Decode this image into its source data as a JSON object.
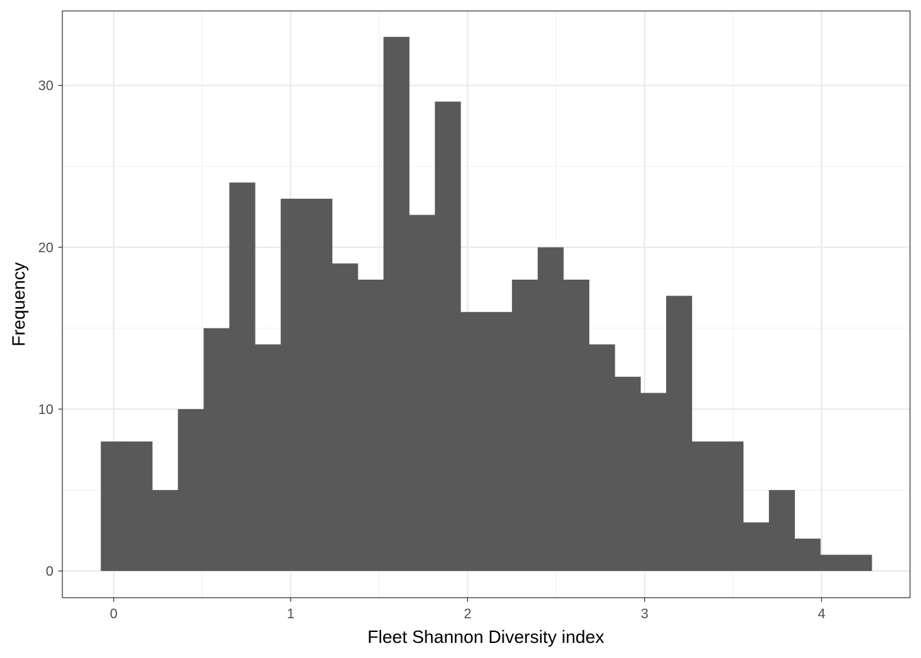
{
  "chart_data": {
    "type": "bar",
    "subtype": "histogram",
    "title": "",
    "xlabel": "Fleet Shannon Diversity index",
    "ylabel": "Frequency",
    "bin_width": 0.1452,
    "bins": [
      {
        "x_start": -0.0726,
        "x_end": 0.0726,
        "count": 8
      },
      {
        "x_start": 0.0726,
        "x_end": 0.2178,
        "count": 8
      },
      {
        "x_start": 0.2178,
        "x_end": 0.363,
        "count": 5
      },
      {
        "x_start": 0.363,
        "x_end": 0.5082,
        "count": 10
      },
      {
        "x_start": 0.5082,
        "x_end": 0.6534,
        "count": 15
      },
      {
        "x_start": 0.6534,
        "x_end": 0.7986,
        "count": 24
      },
      {
        "x_start": 0.7986,
        "x_end": 0.9438,
        "count": 14
      },
      {
        "x_start": 0.9438,
        "x_end": 1.089,
        "count": 23
      },
      {
        "x_start": 1.089,
        "x_end": 1.2342,
        "count": 23
      },
      {
        "x_start": 1.2342,
        "x_end": 1.3794,
        "count": 19
      },
      {
        "x_start": 1.3794,
        "x_end": 1.5246,
        "count": 18
      },
      {
        "x_start": 1.5246,
        "x_end": 1.6698,
        "count": 33
      },
      {
        "x_start": 1.6698,
        "x_end": 1.815,
        "count": 22
      },
      {
        "x_start": 1.815,
        "x_end": 1.9602,
        "count": 29
      },
      {
        "x_start": 1.9602,
        "x_end": 2.1054,
        "count": 16
      },
      {
        "x_start": 2.1054,
        "x_end": 2.2506,
        "count": 16
      },
      {
        "x_start": 2.2506,
        "x_end": 2.3958,
        "count": 18
      },
      {
        "x_start": 2.3958,
        "x_end": 2.541,
        "count": 20
      },
      {
        "x_start": 2.541,
        "x_end": 2.6862,
        "count": 18
      },
      {
        "x_start": 2.6862,
        "x_end": 2.8314,
        "count": 14
      },
      {
        "x_start": 2.8314,
        "x_end": 2.9766,
        "count": 12
      },
      {
        "x_start": 2.9766,
        "x_end": 3.1218,
        "count": 11
      },
      {
        "x_start": 3.1218,
        "x_end": 3.267,
        "count": 17
      },
      {
        "x_start": 3.267,
        "x_end": 3.4122,
        "count": 8
      },
      {
        "x_start": 3.4122,
        "x_end": 3.5574,
        "count": 8
      },
      {
        "x_start": 3.5574,
        "x_end": 3.7026,
        "count": 3
      },
      {
        "x_start": 3.7026,
        "x_end": 3.8478,
        "count": 5
      },
      {
        "x_start": 3.8478,
        "x_end": 3.993,
        "count": 2
      },
      {
        "x_start": 3.993,
        "x_end": 4.1382,
        "count": 1
      },
      {
        "x_start": 4.1382,
        "x_end": 4.2834,
        "count": 1
      }
    ],
    "xlim": [
      -0.29,
      4.5
    ],
    "ylim": [
      -1.65,
      34.6
    ],
    "x_ticks": [
      0,
      1,
      2,
      3,
      4
    ],
    "x_tick_labels": [
      "0",
      "1",
      "2",
      "3",
      "4"
    ],
    "y_ticks": [
      0,
      10,
      20,
      30
    ],
    "y_tick_labels": [
      "0",
      "10",
      "20",
      "30"
    ],
    "grid": true,
    "legend": "none",
    "colors": {
      "bar": "#595959",
      "panel_border": "#333333",
      "grid_major": "#ebebeb",
      "grid_minor": "#f2f2f2",
      "tick_label": "#4d4d4d",
      "axis_title": "#000000"
    }
  }
}
